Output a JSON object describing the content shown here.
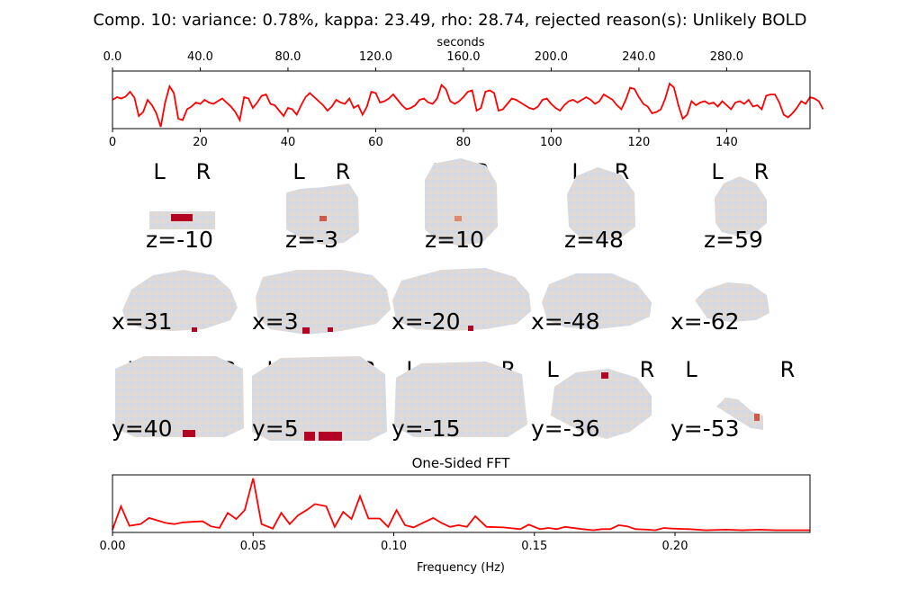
{
  "figure": {
    "title": "Comp. 10: variance: 0.78%, kappa: 23.49, rho: 28.74, rejected reason(s): Unlikely BOLD"
  },
  "colors": {
    "line": "#ff0000",
    "axis": "#000000",
    "brain": "#dcdcdc",
    "pos": "#b40426",
    "neg": "#3b4cc0"
  },
  "chart_data": [
    {
      "type": "line",
      "name": "timeseries",
      "xlabel_top": "seconds",
      "top_ticks": [
        "0.0",
        "40.0",
        "80.0",
        "120.0",
        "160.0",
        "200.0",
        "240.0",
        "280.0"
      ],
      "top_tick_values": [
        0,
        40,
        80,
        120,
        160,
        200,
        240,
        280
      ],
      "bottom_ticks": [
        "0",
        "20",
        "40",
        "60",
        "80",
        "100",
        "120",
        "140"
      ],
      "bottom_tick_values": [
        0,
        20,
        40,
        60,
        80,
        100,
        120,
        140
      ],
      "xlim": [
        0,
        159
      ],
      "ylim": [
        -1,
        1
      ],
      "y_ticks_shown": false,
      "values": [
        0.0,
        0.1,
        0.05,
        0.12,
        0.3,
        0.08,
        -0.6,
        -0.45,
        0.0,
        -0.2,
        -0.5,
        -1.0,
        -0.1,
        0.5,
        0.25,
        -0.7,
        -0.75,
        -0.35,
        -0.25,
        -0.1,
        -0.15,
        0.0,
        -0.1,
        -0.15,
        -0.05,
        0.05,
        -0.1,
        -0.25,
        -0.45,
        -0.75,
        0.1,
        0.05,
        -0.3,
        -0.1,
        0.15,
        0.2,
        -0.15,
        -0.2,
        -0.4,
        -0.6,
        -0.3,
        -0.35,
        -0.55,
        -0.2,
        0.1,
        0.25,
        0.1,
        -0.05,
        -0.2,
        -0.4,
        -0.25,
        0.0,
        -0.1,
        -0.15,
        0.05,
        -0.3,
        -0.2,
        -0.55,
        -0.25,
        0.3,
        0.25,
        -0.1,
        -0.05,
        0.05,
        0.2,
        0.0,
        -0.2,
        -0.35,
        -0.3,
        -0.2,
        0.0,
        0.05,
        -0.1,
        -0.15,
        0.05,
        0.55,
        0.4,
        -0.05,
        -0.15,
        -0.05,
        0.1,
        0.3,
        0.35,
        -0.4,
        -0.3,
        0.3,
        0.35,
        0.25,
        -0.4,
        -0.35,
        -0.15,
        0.05,
        0.0,
        -0.1,
        -0.2,
        -0.3,
        -0.35,
        -0.25,
        0.0,
        0.05,
        -0.15,
        -0.3,
        -0.4,
        -0.2,
        -0.05,
        0.0,
        -0.1,
        0.0,
        0.1,
        0.0,
        -0.15,
        -0.05,
        0.2,
        0.1,
        0.0,
        -0.2,
        -0.35,
        0.0,
        0.45,
        0.4,
        0.1,
        -0.15,
        -0.25,
        -0.5,
        -0.45,
        -0.35,
        0.05,
        0.6,
        0.45,
        -0.2,
        -0.7,
        -0.55,
        -0.05,
        -0.2,
        -0.1,
        -0.05,
        -0.15,
        -0.1,
        -0.25,
        -0.05,
        -0.2,
        -0.35,
        -0.1,
        -0.05,
        -0.15,
        0.0,
        -0.25,
        -0.2,
        -0.35,
        0.15,
        0.2,
        0.2,
        -0.1,
        -0.55,
        -0.65,
        -0.5,
        -0.3,
        -0.05,
        -0.15,
        0.1,
        0.05,
        -0.05,
        -0.35
      ]
    },
    {
      "type": "line",
      "name": "fft",
      "title": "One-Sided FFT",
      "xlabel": "Frequency (Hz)",
      "x_ticks": [
        "0.00",
        "0.05",
        "0.10",
        "0.15",
        "0.20"
      ],
      "x_tick_values": [
        0,
        0.05,
        0.1,
        0.15,
        0.2
      ],
      "xlim": [
        0,
        0.248
      ],
      "ylim": [
        0,
        1
      ],
      "y_ticks_shown": false,
      "x": [
        0,
        0.003,
        0.006,
        0.01,
        0.013,
        0.019,
        0.022,
        0.025,
        0.032,
        0.035,
        0.038,
        0.041,
        0.044,
        0.047,
        0.05,
        0.053,
        0.057,
        0.06,
        0.063,
        0.066,
        0.069,
        0.072,
        0.076,
        0.079,
        0.082,
        0.085,
        0.088,
        0.091,
        0.095,
        0.098,
        0.101,
        0.104,
        0.107,
        0.114,
        0.117,
        0.12,
        0.123,
        0.126,
        0.129,
        0.133,
        0.139,
        0.145,
        0.148,
        0.152,
        0.155,
        0.158,
        0.161,
        0.167,
        0.171,
        0.174,
        0.177,
        0.18,
        0.183,
        0.186,
        0.19,
        0.193,
        0.196,
        0.199,
        0.205,
        0.211,
        0.218,
        0.224,
        0.23,
        0.236,
        0.242,
        0.248
      ],
      "values": [
        0.05,
        0.47,
        0.12,
        0.15,
        0.26,
        0.17,
        0.15,
        0.18,
        0.2,
        0.11,
        0.08,
        0.35,
        0.24,
        0.4,
        0.97,
        0.15,
        0.07,
        0.35,
        0.15,
        0.31,
        0.4,
        0.51,
        0.47,
        0.1,
        0.37,
        0.24,
        0.65,
        0.25,
        0.25,
        0.1,
        0.4,
        0.13,
        0.09,
        0.26,
        0.17,
        0.1,
        0.13,
        0.1,
        0.29,
        0.1,
        0.09,
        0.06,
        0.14,
        0.06,
        0.08,
        0.06,
        0.1,
        0.06,
        0.04,
        0.06,
        0.06,
        0.13,
        0.11,
        0.06,
        0.05,
        0.04,
        0.08,
        0.07,
        0.06,
        0.04,
        0.05,
        0.04,
        0.05,
        0.04,
        0.04,
        0.04
      ]
    }
  ],
  "brain_panels": {
    "axial": [
      {
        "label": "z=-10",
        "left_marker": "L",
        "right_marker": "R"
      },
      {
        "label": "z=-3",
        "left_marker": "L",
        "right_marker": "R"
      },
      {
        "label": "z=10",
        "left_marker": "L",
        "right_marker": "R"
      },
      {
        "label": "z=48",
        "left_marker": "L",
        "right_marker": "R"
      },
      {
        "label": "z=59",
        "left_marker": "L",
        "right_marker": "R"
      }
    ],
    "sagittal": [
      {
        "label": "x=31"
      },
      {
        "label": "x=3"
      },
      {
        "label": "x=-20"
      },
      {
        "label": "x=-48"
      },
      {
        "label": "x=-62"
      }
    ],
    "coronal": [
      {
        "label": "y=40",
        "left_marker": "L",
        "right_marker": "R"
      },
      {
        "label": "y=5",
        "left_marker": "L",
        "right_marker": "R"
      },
      {
        "label": "y=-15",
        "left_marker": "L",
        "right_marker": "R"
      },
      {
        "label": "y=-36",
        "left_marker": "L",
        "right_marker": "R"
      },
      {
        "label": "y=-53",
        "left_marker": "L",
        "right_marker": "R"
      }
    ]
  }
}
